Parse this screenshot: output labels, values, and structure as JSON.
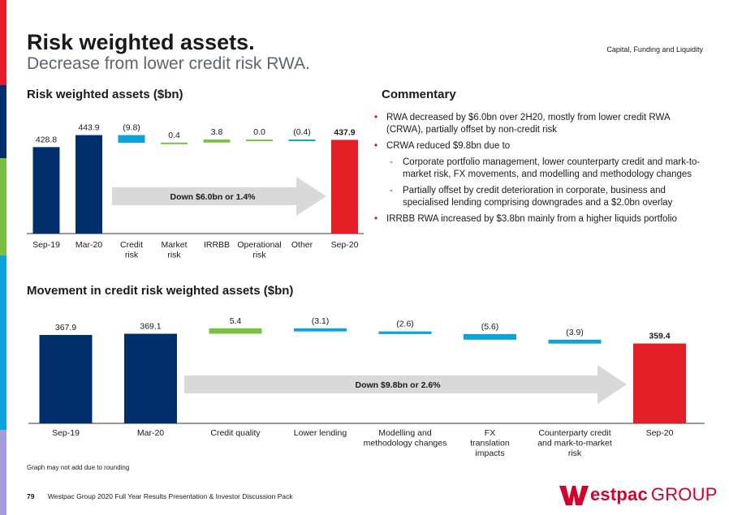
{
  "header": {
    "title": "Risk weighted assets.",
    "subtitle": "Decrease from lower credit risk RWA.",
    "section": "Capital, Funding and Liquidity"
  },
  "chart1": {
    "heading": "Risk weighted assets ($bn)",
    "arrow_label": "Down $6.0bn or 1.4%"
  },
  "chart2": {
    "heading": "Movement in credit risk weighted assets ($bn)",
    "arrow_label": "Down $9.8bn or 2.6%"
  },
  "commentary": {
    "heading": "Commentary",
    "b1": "RWA decreased by $6.0bn over 2H20, mostly from lower credit RWA (CRWA), partially offset by non-credit risk",
    "b2": "CRWA reduced $9.8bn due to",
    "s1": "Corporate portfolio management, lower counterparty credit and mark-to-market risk, FX movements, and modelling and methodology changes",
    "s2": "Partially offset by credit deterioration in corporate, business and specialised lending comprising downgrades and a $2.0bn overlay",
    "b3": "IRRBB RWA increased by $3.8bn mainly from a higher liquids portfolio"
  },
  "footnote": "Graph may not add due to rounding",
  "footer": {
    "page": "79",
    "text": "Westpac Group 2020 Full Year Results Presentation & Investor Discussion Pack"
  },
  "logo": {
    "w": "W",
    "estpac": "estpac",
    "group": "GROUP"
  },
  "colors": {
    "navy": "#002f6c",
    "red": "#e41e26",
    "blue": "#0ba3d9",
    "green": "#7ac143",
    "grey_arrow": "#d9d9d9",
    "brand_red": "#d5002b",
    "stripes": [
      "#e41e26",
      "#002f6c",
      "#7ac143",
      "#0ba3d9",
      "#a39edb"
    ]
  },
  "chart_data": [
    {
      "type": "bar",
      "subtype": "waterfall",
      "title": "Risk weighted assets ($bn)",
      "categories": [
        "Sep-19",
        "Mar-20",
        "Credit risk",
        "Market risk",
        "IRRBB",
        "Operational risk",
        "Other",
        "Sep-20"
      ],
      "values": [
        428.8,
        443.9,
        -9.8,
        0.4,
        3.8,
        0.0,
        -0.4,
        437.9
      ],
      "labels": [
        "428.8",
        "443.9",
        "(9.8)",
        "0.4",
        "3.8",
        "0.0",
        "(0.4)",
        "437.9"
      ],
      "kinds": [
        "total",
        "total",
        "delta",
        "delta",
        "delta",
        "delta",
        "delta",
        "total"
      ],
      "annotation": "Down $6.0bn or 1.4%"
    },
    {
      "type": "bar",
      "subtype": "waterfall",
      "title": "Movement in credit risk weighted assets ($bn)",
      "categories": [
        "Sep-19",
        "Mar-20",
        "Credit quality",
        "Lower lending",
        "Modelling and methodology changes",
        "FX translation impacts",
        "Counterparty credit and mark-to-market risk",
        "Sep-20"
      ],
      "values": [
        367.9,
        369.1,
        5.4,
        -3.1,
        -2.6,
        -5.6,
        -3.9,
        359.4
      ],
      "labels": [
        "367.9",
        "369.1",
        "5.4",
        "(3.1)",
        "(2.6)",
        "(5.6)",
        "(3.9)",
        "359.4"
      ],
      "kinds": [
        "total",
        "total",
        "delta",
        "delta",
        "delta",
        "delta",
        "delta",
        "total"
      ],
      "annotation": "Down $9.8bn or 2.6%"
    }
  ]
}
